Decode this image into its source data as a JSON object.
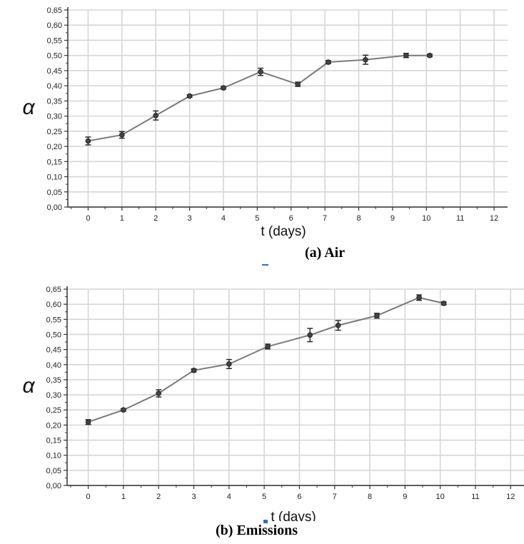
{
  "chart_data": [
    {
      "type": "line",
      "caption": "(a) Air",
      "xlabel": "t (days)",
      "ylabel": "α",
      "xlim": [
        -0.6,
        12.4
      ],
      "ylim": [
        0,
        0.65
      ],
      "xticks": [
        0,
        1,
        2,
        3,
        4,
        5,
        6,
        7,
        8,
        9,
        10,
        11,
        12
      ],
      "yticks": [
        "0,00",
        "0,05",
        "0,10",
        "0,15",
        "0,20",
        "0,25",
        "0,30",
        "0,35",
        "0,40",
        "0,45",
        "0,50",
        "0,55",
        "0,60",
        "0,65"
      ],
      "grid": true,
      "series": [
        {
          "x": [
            0,
            1,
            2,
            3,
            4,
            5.1,
            6.2,
            7.1,
            8.2,
            9.4,
            10.1
          ],
          "y": [
            0.218,
            0.238,
            0.302,
            0.366,
            0.393,
            0.446,
            0.405,
            0.478,
            0.486,
            0.5,
            0.5
          ],
          "err": [
            0.013,
            0.011,
            0.015,
            0.004,
            0.004,
            0.012,
            0.007,
            0.005,
            0.015,
            0.007,
            0.004
          ],
          "color": "#555555"
        }
      ]
    },
    {
      "type": "line",
      "caption": "(b) Emissions",
      "xlabel": "t (days)",
      "ylabel": "α",
      "xlim": [
        -0.6,
        12.4
      ],
      "ylim": [
        0,
        0.65
      ],
      "xticks": [
        0,
        1,
        2,
        3,
        4,
        5,
        6,
        7,
        8,
        9,
        10,
        11,
        12
      ],
      "yticks": [
        "0,00",
        "0,05",
        "0,10",
        "0,15",
        "0,20",
        "0,25",
        "0,30",
        "0,35",
        "0,40",
        "0,45",
        "0,50",
        "0,55",
        "0,60",
        "0,65"
      ],
      "grid": true,
      "series": [
        {
          "x": [
            0,
            1,
            2,
            3,
            4,
            5.1,
            6.3,
            7.1,
            8.2,
            9.4,
            10.1
          ],
          "y": [
            0.21,
            0.25,
            0.305,
            0.381,
            0.402,
            0.46,
            0.498,
            0.53,
            0.562,
            0.622,
            0.603
          ],
          "err": [
            0.008,
            0.004,
            0.012,
            0.005,
            0.015,
            0.008,
            0.022,
            0.016,
            0.008,
            0.009,
            0.005
          ],
          "color": "#555555"
        }
      ]
    }
  ]
}
